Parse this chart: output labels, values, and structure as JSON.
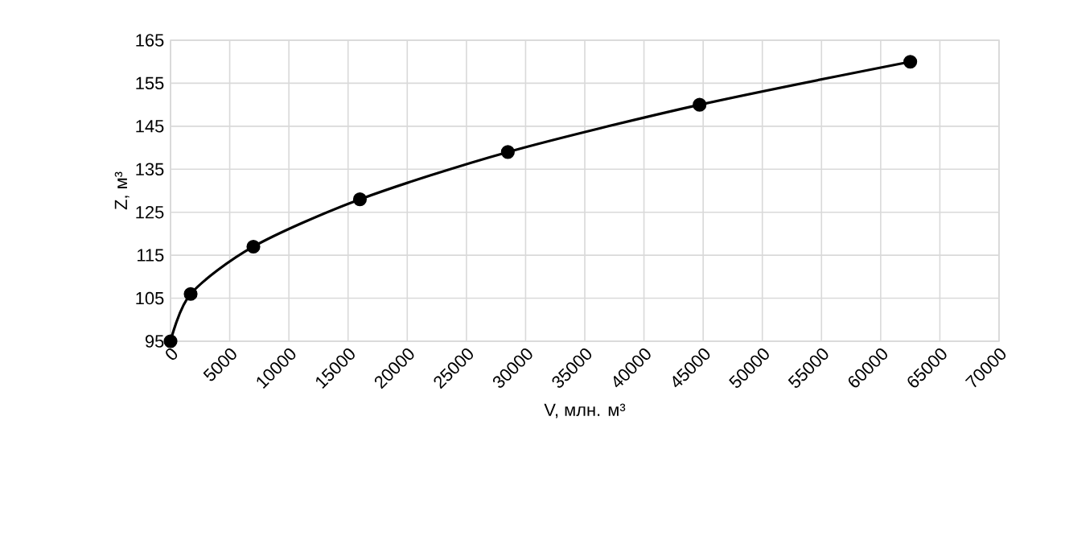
{
  "chart_data": {
    "type": "line",
    "xlabel": "V, млн. м³",
    "ylabel": "Z, м³",
    "x": [
      0,
      1700,
      7000,
      16000,
      28500,
      44700,
      62500
    ],
    "values": [
      95,
      106,
      117,
      128,
      139,
      150,
      160
    ],
    "color": "#000000",
    "marker": "circle",
    "line_style": "solid",
    "grid": true,
    "xlim": [
      0,
      70000
    ],
    "xticks": [
      0,
      5000,
      10000,
      15000,
      20000,
      25000,
      30000,
      35000,
      40000,
      45000,
      50000,
      55000,
      60000,
      65000,
      70000
    ],
    "ylim": [
      95,
      165
    ],
    "yticks": [
      95,
      105,
      115,
      125,
      135,
      145,
      155,
      165
    ]
  }
}
